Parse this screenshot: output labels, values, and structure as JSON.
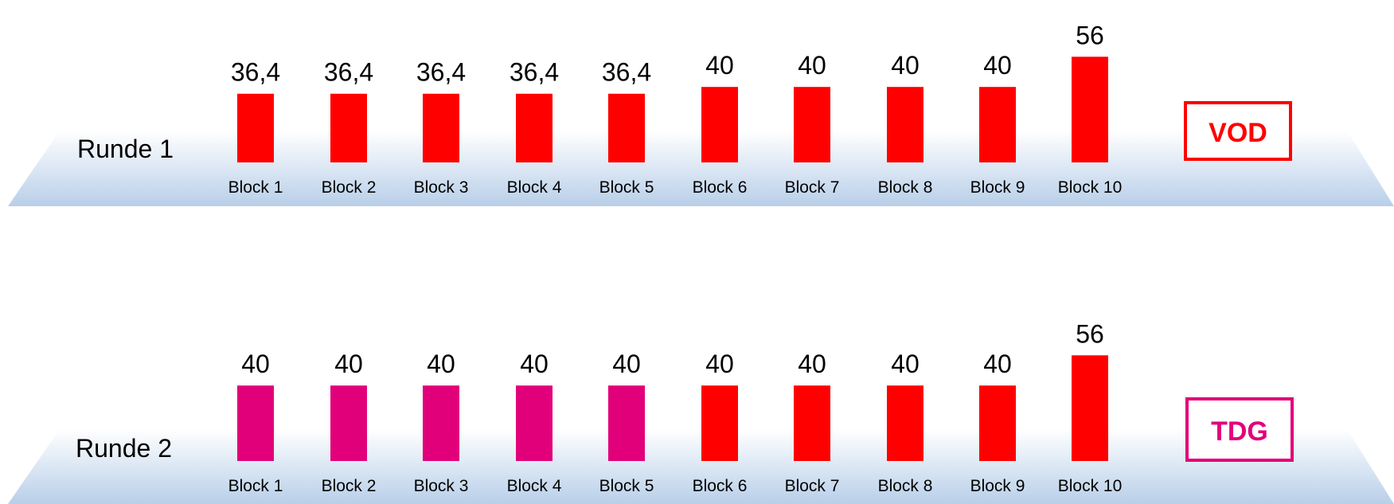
{
  "colors": {
    "red": "#ff0000",
    "magenta": "#e2007a",
    "platform_top": "#ffffff",
    "platform_bottom": "#b8cfe9"
  },
  "chart_data": [
    {
      "type": "bar",
      "row_label": "Runde 1",
      "badge": {
        "text": "VOD",
        "color": "#ff0000"
      },
      "categories": [
        "Block 1",
        "Block 2",
        "Block 3",
        "Block 4",
        "Block 5",
        "Block 6",
        "Block 7",
        "Block 8",
        "Block 9",
        "Block 10"
      ],
      "values": [
        36.4,
        36.4,
        36.4,
        36.4,
        36.4,
        40,
        40,
        40,
        40,
        56
      ],
      "value_labels": [
        "36,4",
        "36,4",
        "36,4",
        "36,4",
        "36,4",
        "40",
        "40",
        "40",
        "40",
        "56"
      ],
      "bar_colors": [
        "#ff0000",
        "#ff0000",
        "#ff0000",
        "#ff0000",
        "#ff0000",
        "#ff0000",
        "#ff0000",
        "#ff0000",
        "#ff0000",
        "#ff0000"
      ]
    },
    {
      "type": "bar",
      "row_label": "Runde 2",
      "badge": {
        "text": "TDG",
        "color": "#e2007a"
      },
      "categories": [
        "Block 1",
        "Block 2",
        "Block 3",
        "Block 4",
        "Block 5",
        "Block 6",
        "Block 7",
        "Block 8",
        "Block 9",
        "Block 10"
      ],
      "values": [
        40,
        40,
        40,
        40,
        40,
        40,
        40,
        40,
        40,
        56
      ],
      "value_labels": [
        "40",
        "40",
        "40",
        "40",
        "40",
        "40",
        "40",
        "40",
        "40",
        "56"
      ],
      "bar_colors": [
        "#e2007a",
        "#e2007a",
        "#e2007a",
        "#e2007a",
        "#e2007a",
        "#ff0000",
        "#ff0000",
        "#ff0000",
        "#ff0000",
        "#ff0000"
      ]
    }
  ]
}
